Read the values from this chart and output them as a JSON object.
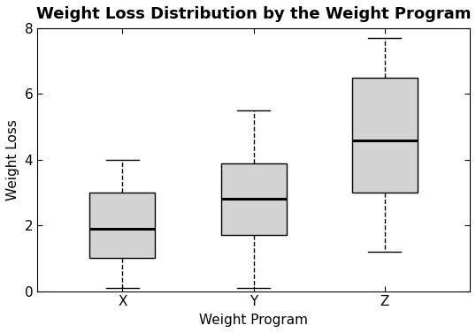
{
  "title": "Weight Loss Distribution by the Weight Program",
  "xlabel": "Weight Program",
  "ylabel": "Weight Loss",
  "categories": [
    "X",
    "Y",
    "Z"
  ],
  "box_stats": [
    {
      "label": "X",
      "whislo": 0.1,
      "q1": 1.0,
      "med": 1.9,
      "q3": 3.0,
      "whishi": 4.0,
      "fliers": []
    },
    {
      "label": "Y",
      "whislo": 0.1,
      "q1": 1.7,
      "med": 2.8,
      "q3": 3.9,
      "whishi": 5.5,
      "fliers": []
    },
    {
      "label": "Z",
      "whislo": 1.2,
      "q1": 3.0,
      "med": 4.6,
      "q3": 6.5,
      "whishi": 7.7,
      "fliers": []
    }
  ],
  "ylim": [
    0,
    8
  ],
  "yticks": [
    0,
    2,
    4,
    6,
    8
  ],
  "box_facecolor": "#d3d3d3",
  "box_edgecolor": "#000000",
  "median_color": "#000000",
  "whisker_color": "#000000",
  "cap_color": "#000000",
  "background_color": "#ffffff",
  "title_fontsize": 13,
  "label_fontsize": 11,
  "tick_fontsize": 11,
  "title_fontweight": "bold",
  "label_fontweight": "normal"
}
